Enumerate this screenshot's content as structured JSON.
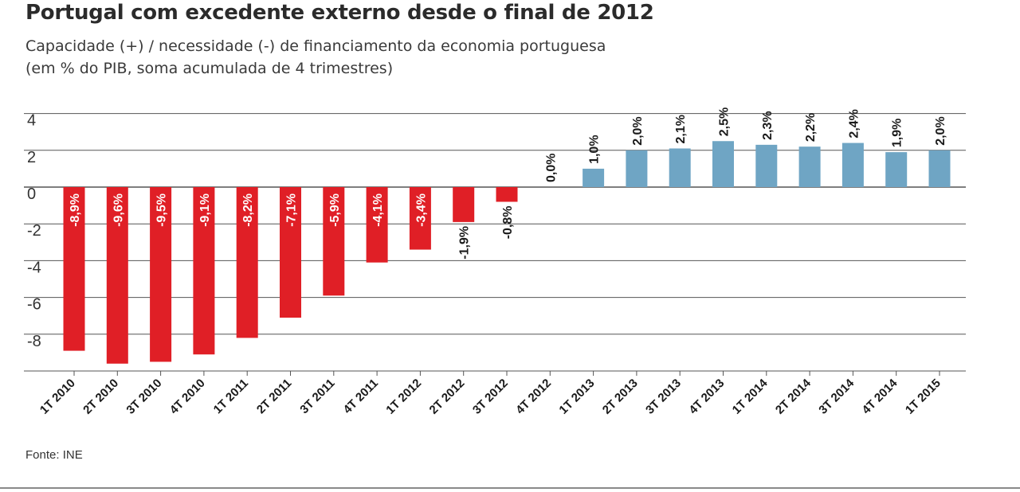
{
  "title": "Portugal com excedente externo desde o final de 2012",
  "subtitle": [
    "Capacidade (+) / necessidade (-) de financiamento da economia portuguesa",
    "(em % do PIB, soma acumulada de 4 trimestres)"
  ],
  "source": "Fonte: INE",
  "colors": {
    "negative": "#e01f26",
    "positive": "#6fa5c4",
    "grid": "#555555",
    "text": "#1a1a1a"
  },
  "chart_data": {
    "type": "bar",
    "categories": [
      "1T 2010",
      "2T 2010",
      "3T 2010",
      "4T 2010",
      "1T 2011",
      "2T 2011",
      "3T 2011",
      "4T 2011",
      "1T 2012",
      "2T 2012",
      "3T 2012",
      "4T 2012",
      "1T 2013",
      "2T 2013",
      "3T 2013",
      "4T 2013",
      "1T 2014",
      "2T 2014",
      "3T 2014",
      "4T 2014",
      "1T 2015"
    ],
    "values": [
      -8.9,
      -9.6,
      -9.5,
      -9.1,
      -8.2,
      -7.1,
      -5.9,
      -4.1,
      -3.4,
      -1.9,
      -0.8,
      0.0,
      1.0,
      2.0,
      2.1,
      2.5,
      2.3,
      2.2,
      2.4,
      1.9,
      2.0
    ],
    "data_labels": [
      "-8,9%",
      "-9,6%",
      "-9,5%",
      "-9,1%",
      "-8,2%",
      "-7,1%",
      "-5,9%",
      "-4,1%",
      "-3,4%",
      "-1,9%",
      "-0,8%",
      "0,0%",
      "1,0%",
      "2,0%",
      "2,1%",
      "2,5%",
      "2,3%",
      "2,2%",
      "2,4%",
      "1,9%",
      "2,0%"
    ],
    "ylim": [
      -10,
      4
    ],
    "yticks": [
      4,
      2,
      0,
      -2,
      -4,
      -6,
      -8
    ],
    "grid": true,
    "xlabel": "",
    "ylabel": ""
  }
}
